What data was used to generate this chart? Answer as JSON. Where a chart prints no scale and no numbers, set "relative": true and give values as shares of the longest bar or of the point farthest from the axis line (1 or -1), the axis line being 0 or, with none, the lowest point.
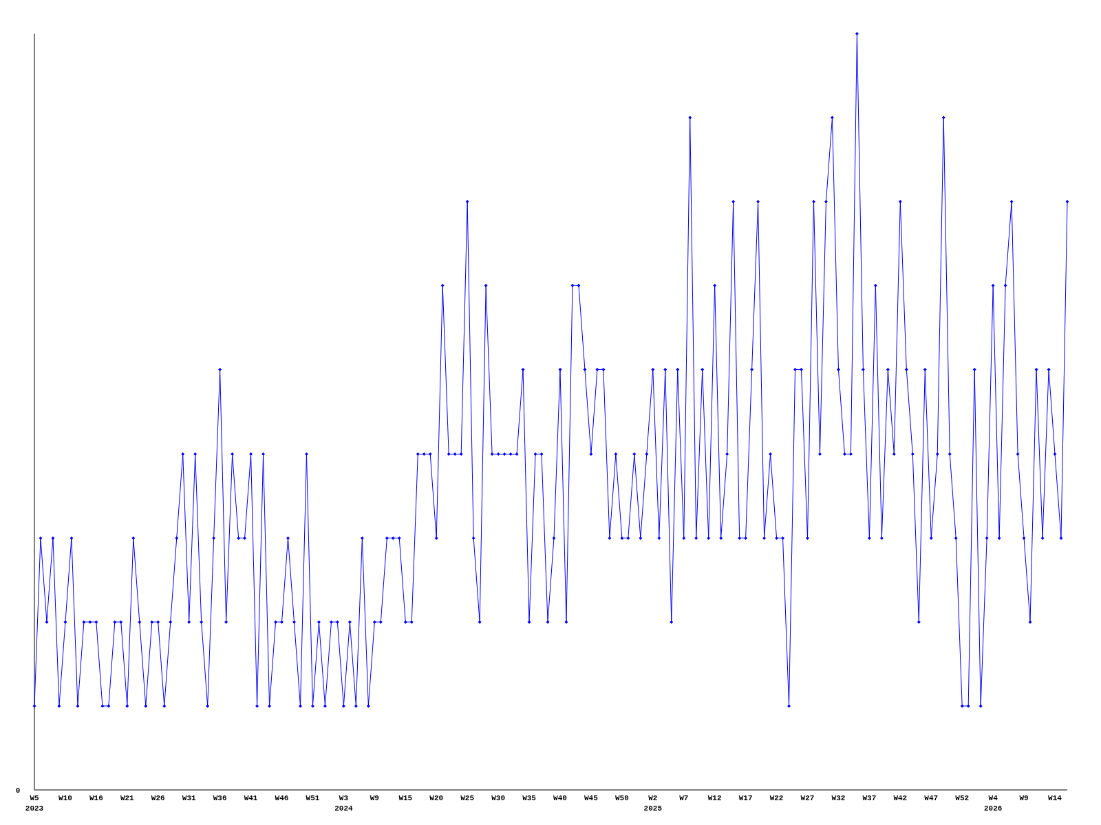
{
  "chart_data": {
    "type": "line",
    "relative": true,
    "annotations": [
      "0"
    ],
    "marker": "diamond",
    "line_style": "solid",
    "categories": [
      "W5\n2023",
      null,
      null,
      null,
      null,
      "W10",
      null,
      null,
      null,
      null,
      "W16",
      null,
      null,
      null,
      null,
      "W21",
      null,
      null,
      null,
      null,
      "W26",
      null,
      null,
      null,
      null,
      "W31",
      null,
      null,
      null,
      null,
      "W36",
      null,
      null,
      null,
      null,
      "W41",
      null,
      null,
      null,
      null,
      "W46",
      null,
      null,
      null,
      null,
      "W51",
      null,
      null,
      null,
      null,
      "W3\n2024",
      null,
      null,
      null,
      null,
      "W9",
      null,
      null,
      null,
      null,
      "W15",
      null,
      null,
      null,
      null,
      "W20",
      null,
      null,
      null,
      null,
      "W25",
      null,
      null,
      null,
      null,
      "W30",
      null,
      null,
      null,
      null,
      "W35",
      null,
      null,
      null,
      null,
      "W40",
      null,
      null,
      null,
      null,
      "W45",
      null,
      null,
      null,
      null,
      "W50",
      null,
      null,
      null,
      null,
      "W2\n2025",
      null,
      null,
      null,
      null,
      "W7",
      null,
      null,
      null,
      null,
      "W12",
      null,
      null,
      null,
      null,
      "W17",
      null,
      null,
      null,
      null,
      "W22",
      null,
      null,
      null,
      null,
      "W27",
      null,
      null,
      null,
      null,
      "W32",
      null,
      null,
      null,
      null,
      "W37",
      null,
      null,
      null,
      null,
      "W42",
      null,
      null,
      null,
      null,
      "W47",
      null,
      null,
      null,
      null,
      "W52",
      null,
      null,
      null,
      null,
      "W4\n2026",
      null,
      null,
      null,
      null,
      "W9",
      null,
      null,
      null,
      null,
      "W14",
      null,
      null
    ],
    "series": [
      {
        "color": "#0000ff",
        "values": [
          0.111,
          0.333,
          0.222,
          0.333,
          0.111,
          0.222,
          0.333,
          0.111,
          0.222,
          0.222,
          0.222,
          0.111,
          0.111,
          0.222,
          0.222,
          0.111,
          0.333,
          0.222,
          0.111,
          0.222,
          0.222,
          0.111,
          0.222,
          0.333,
          0.444,
          0.222,
          0.444,
          0.222,
          0.111,
          0.333,
          0.556,
          0.222,
          0.444,
          0.333,
          0.333,
          0.444,
          0.111,
          0.444,
          0.111,
          0.222,
          0.222,
          0.333,
          0.222,
          0.111,
          0.444,
          0.111,
          0.222,
          0.111,
          0.222,
          0.222,
          0.111,
          0.222,
          0.111,
          0.333,
          0.111,
          0.222,
          0.222,
          0.333,
          0.333,
          0.333,
          0.222,
          0.222,
          0.444,
          0.444,
          0.444,
          0.333,
          0.667,
          0.444,
          0.444,
          0.444,
          0.778,
          0.333,
          0.222,
          0.667,
          0.444,
          0.444,
          0.444,
          0.444,
          0.444,
          0.556,
          0.222,
          0.444,
          0.444,
          0.222,
          0.333,
          0.556,
          0.222,
          0.667,
          0.667,
          0.556,
          0.444,
          0.556,
          0.556,
          0.333,
          0.444,
          0.333,
          0.333,
          0.444,
          0.333,
          0.444,
          0.556,
          0.333,
          0.556,
          0.222,
          0.556,
          0.333,
          0.889,
          0.333,
          0.556,
          0.333,
          0.667,
          0.333,
          0.444,
          0.778,
          0.333,
          0.333,
          0.556,
          0.778,
          0.333,
          0.444,
          0.333,
          0.333,
          0.111,
          0.556,
          0.556,
          0.333,
          0.778,
          0.444,
          0.778,
          0.889,
          0.556,
          0.444,
          0.444,
          1,
          0.556,
          0.333,
          0.667,
          0.333,
          0.556,
          0.444,
          0.778,
          0.556,
          0.444,
          0.222,
          0.556,
          0.333,
          0.444,
          0.889,
          0.444,
          0.333,
          0.111,
          0.111,
          0.556,
          0.111,
          0.333,
          0.667,
          0.333,
          0.667,
          0.778,
          0.444,
          0.333,
          0.222,
          0.556,
          0.333,
          0.556,
          0.444,
          0.333,
          0.778
        ]
      }
    ]
  }
}
